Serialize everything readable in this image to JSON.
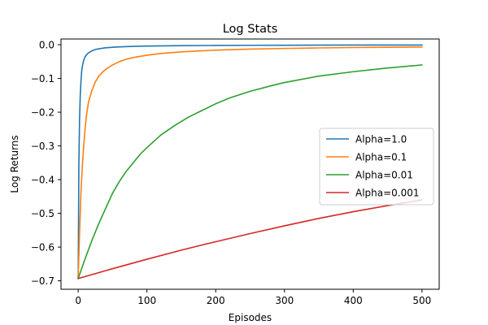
{
  "chart_data": {
    "type": "line",
    "title": "Log Stats",
    "xlabel": "Episodes",
    "ylabel": "Log Returns",
    "xlim": [
      -25,
      525
    ],
    "ylim": [
      -0.725,
      0.017
    ],
    "xticks": [
      0,
      100,
      200,
      300,
      400,
      500
    ],
    "yticks": [
      0.0,
      -0.1,
      -0.2,
      -0.3,
      -0.4,
      -0.5,
      -0.6,
      -0.7
    ],
    "xtick_labels": [
      "0",
      "100",
      "200",
      "300",
      "400",
      "500"
    ],
    "ytick_labels": [
      "0.0",
      "−0.1",
      "−0.2",
      "−0.3",
      "−0.4",
      "−0.5",
      "−0.6",
      "−0.7"
    ],
    "grid": false,
    "legend_position": "center-right",
    "series": [
      {
        "name": "Alpha=1.0",
        "color": "#1f77b4",
        "x": [
          0,
          1,
          2,
          3,
          4,
          5,
          6,
          8,
          10,
          12,
          15,
          20,
          25,
          30,
          40,
          50,
          60,
          80,
          100,
          150,
          200,
          250,
          300,
          400,
          500
        ],
        "y": [
          -0.693,
          -0.35,
          -0.22,
          -0.15,
          -0.11,
          -0.08,
          -0.064,
          -0.046,
          -0.036,
          -0.03,
          -0.024,
          -0.018,
          -0.014,
          -0.012,
          -0.009,
          -0.0075,
          -0.0063,
          -0.0048,
          -0.004,
          -0.0028,
          -0.0021,
          -0.0017,
          -0.0014,
          -0.001,
          -0.0008
        ]
      },
      {
        "name": "Alpha=0.1",
        "color": "#ff7f0e",
        "x": [
          0,
          2,
          4,
          6,
          8,
          10,
          12,
          15,
          20,
          25,
          30,
          35,
          40,
          50,
          60,
          70,
          80,
          100,
          120,
          150,
          200,
          250,
          300,
          350,
          400,
          450,
          500
        ],
        "y": [
          -0.693,
          -0.56,
          -0.44,
          -0.36,
          -0.3,
          -0.25,
          -0.21,
          -0.17,
          -0.135,
          -0.11,
          -0.093,
          -0.082,
          -0.073,
          -0.06,
          -0.05,
          -0.043,
          -0.038,
          -0.031,
          -0.026,
          -0.021,
          -0.016,
          -0.013,
          -0.011,
          -0.0095,
          -0.0083,
          -0.0075,
          -0.0068
        ]
      },
      {
        "name": "Alpha=0.01",
        "color": "#2ca02c",
        "x": [
          0,
          10,
          20,
          30,
          40,
          50,
          60,
          70,
          80,
          90,
          100,
          120,
          140,
          160,
          180,
          200,
          220,
          250,
          280,
          300,
          350,
          400,
          450,
          500
        ],
        "y": [
          -0.693,
          -0.635,
          -0.58,
          -0.53,
          -0.485,
          -0.44,
          -0.405,
          -0.375,
          -0.35,
          -0.325,
          -0.305,
          -0.268,
          -0.24,
          -0.215,
          -0.195,
          -0.175,
          -0.158,
          -0.138,
          -0.122,
          -0.112,
          -0.093,
          -0.08,
          -0.069,
          -0.06
        ]
      },
      {
        "name": "Alpha=0.001",
        "color": "#d62728",
        "x": [
          0,
          50,
          100,
          150,
          200,
          250,
          300,
          350,
          400,
          450,
          500
        ],
        "y": [
          -0.693,
          -0.664,
          -0.636,
          -0.609,
          -0.584,
          -0.56,
          -0.537,
          -0.515,
          -0.495,
          -0.477,
          -0.46
        ]
      }
    ]
  }
}
